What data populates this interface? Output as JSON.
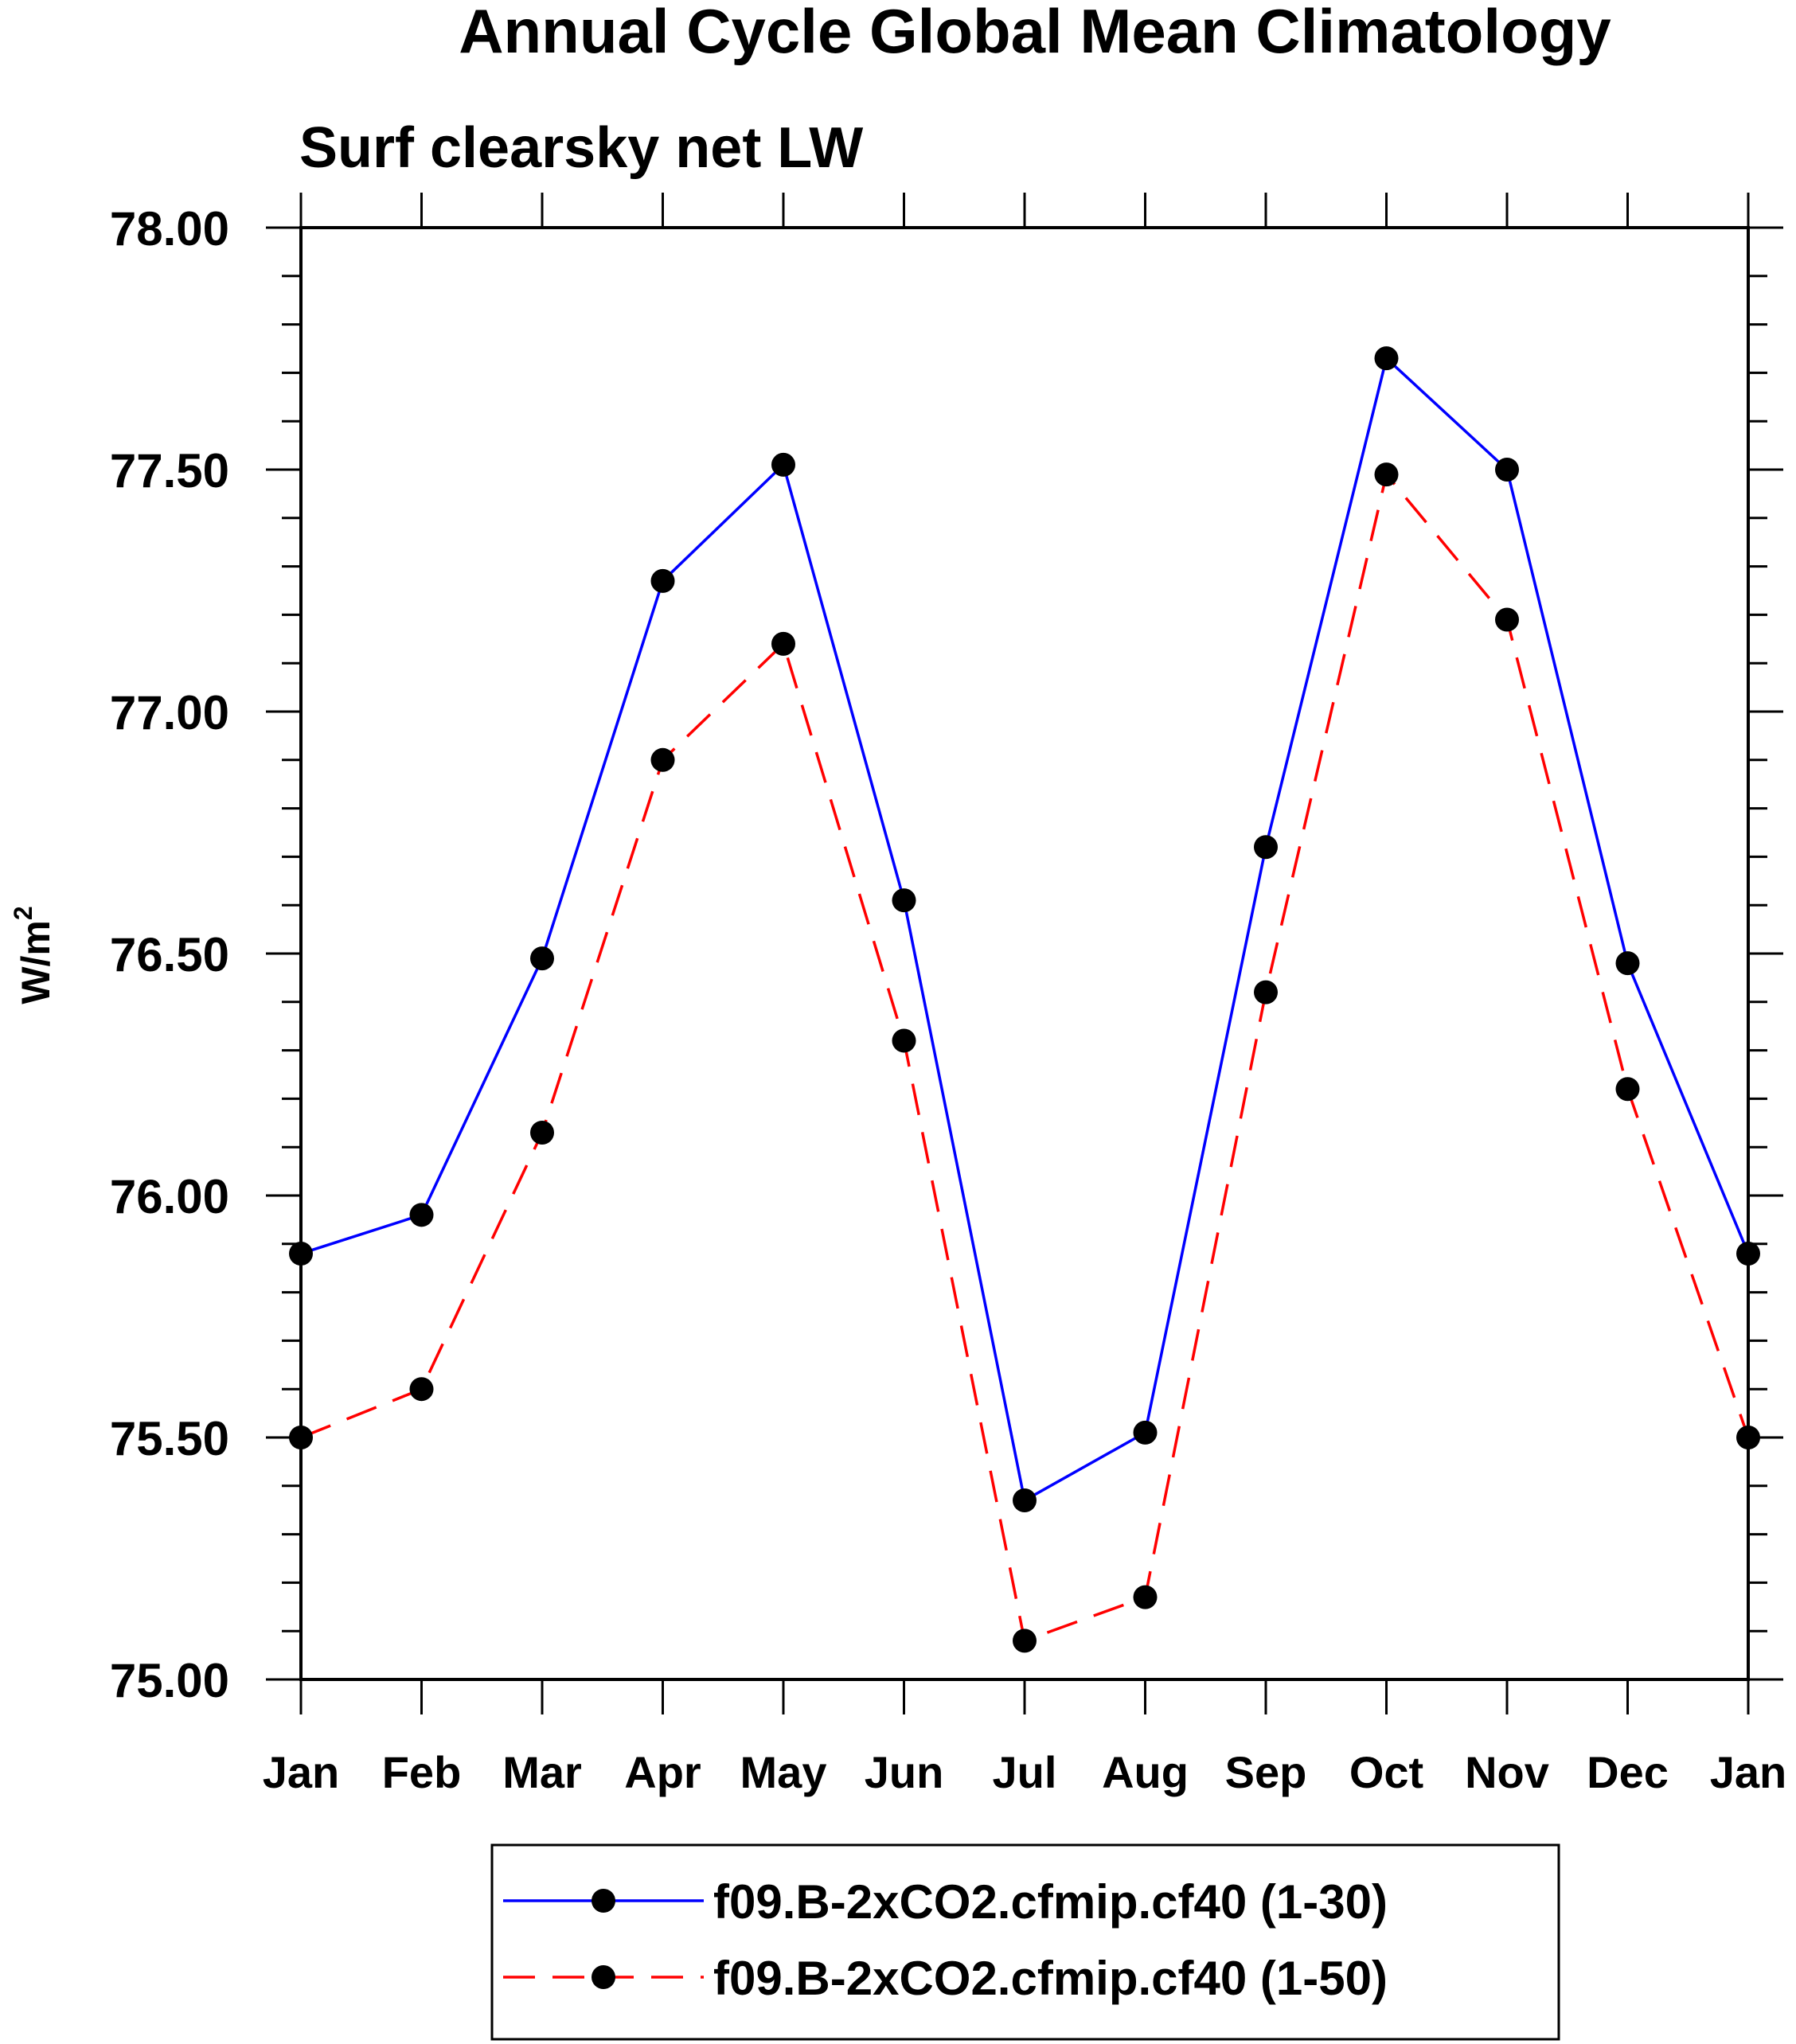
{
  "chart_data": {
    "type": "line",
    "title": "Annual Cycle Global Mean Climatology",
    "subtitle": "Surf clearsky net LW",
    "ylabel_base": "W/m",
    "ylabel_sup": "2",
    "xlabel": "",
    "categories": [
      "Jan",
      "Feb",
      "Mar",
      "Apr",
      "May",
      "Jun",
      "Jul",
      "Aug",
      "Sep",
      "Oct",
      "Nov",
      "Dec",
      "Jan"
    ],
    "ylim": [
      75.0,
      78.0
    ],
    "yticks": [
      "75.00",
      "75.50",
      "76.00",
      "76.50",
      "77.00",
      "77.50",
      "78.00"
    ],
    "series": [
      {
        "name": "f09.B-2xCO2.cfmip.cf40 (1-30)",
        "color": "#0000ff",
        "line_style": "solid",
        "values": [
          75.88,
          75.96,
          76.49,
          77.27,
          77.51,
          76.61,
          75.37,
          75.51,
          76.72,
          77.73,
          77.5,
          76.48,
          75.88
        ]
      },
      {
        "name": "f09.B-2xCO2.cfmip.cf40 (1-50)",
        "color": "#ff0000",
        "line_style": "dashed",
        "values": [
          75.5,
          75.6,
          76.13,
          76.9,
          77.14,
          76.32,
          75.08,
          75.17,
          76.42,
          77.49,
          77.19,
          76.22,
          75.5
        ]
      }
    ],
    "legend_position": "bottom-center",
    "grid": false
  }
}
